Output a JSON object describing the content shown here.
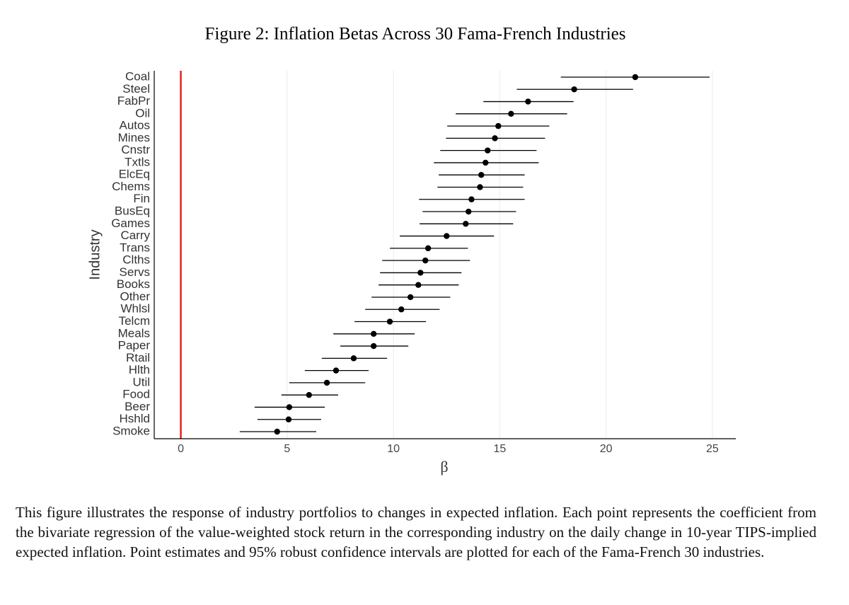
{
  "chart_data": {
    "type": "dot-ci",
    "title": "Figure 2: Inflation Betas Across 30 Fama-French Industries",
    "x_label": "β",
    "y_label": "Industry",
    "categories": [
      "Coal",
      "Steel",
      "FabPr",
      "Oil",
      "Autos",
      "Mines",
      "Cnstr",
      "Txtls",
      "ElcEq",
      "Chems",
      "Fin",
      "BusEq",
      "Games",
      "Carry",
      "Trans",
      "Clths",
      "Servs",
      "Books",
      "Other",
      "Whlsl",
      "Telcm",
      "Meals",
      "Paper",
      "Rtail",
      "Hlth",
      "Util",
      "Food",
      "Beer",
      "Hshld",
      "Smoke"
    ],
    "values": [
      21.37,
      18.5,
      16.33,
      15.53,
      14.93,
      14.77,
      14.43,
      14.33,
      14.13,
      14.07,
      13.67,
      13.53,
      13.4,
      12.5,
      11.63,
      11.5,
      11.27,
      11.17,
      10.8,
      10.37,
      9.83,
      9.07,
      9.07,
      8.13,
      7.3,
      6.87,
      6.03,
      5.1,
      5.07,
      4.53
    ],
    "lower": [
      17.87,
      15.8,
      14.23,
      12.93,
      12.53,
      12.47,
      12.2,
      11.9,
      12.13,
      12.07,
      11.2,
      11.37,
      11.23,
      10.3,
      9.83,
      9.47,
      9.37,
      9.3,
      8.97,
      8.67,
      8.17,
      7.17,
      7.5,
      6.63,
      5.83,
      5.1,
      4.73,
      3.47,
      3.6,
      2.77
    ],
    "upper": [
      24.87,
      21.27,
      18.47,
      18.17,
      17.33,
      17.13,
      16.73,
      16.83,
      16.17,
      16.1,
      16.17,
      15.77,
      15.63,
      14.73,
      13.5,
      13.6,
      13.2,
      13.07,
      12.67,
      12.17,
      11.53,
      11.0,
      10.7,
      9.7,
      8.83,
      8.67,
      7.4,
      6.77,
      6.6,
      6.37
    ],
    "color": "#000000",
    "reference_line": {
      "value": 0,
      "color": "#e8201f"
    },
    "xlim": [
      -1.25,
      26.1
    ],
    "xticks": [
      0,
      5,
      10,
      15,
      20,
      25
    ],
    "grid": true
  },
  "caption": "This figure illustrates the response of industry portfolios to changes in expected inflation. Each point represents the coefficient from the bivariate regression of the value-weighted stock return in the corresponding industry on the daily change in 10-year TIPS-implied expected inflation. Point estimates and 95% robust confidence intervals are plotted for each of the Fama-French 30 industries."
}
